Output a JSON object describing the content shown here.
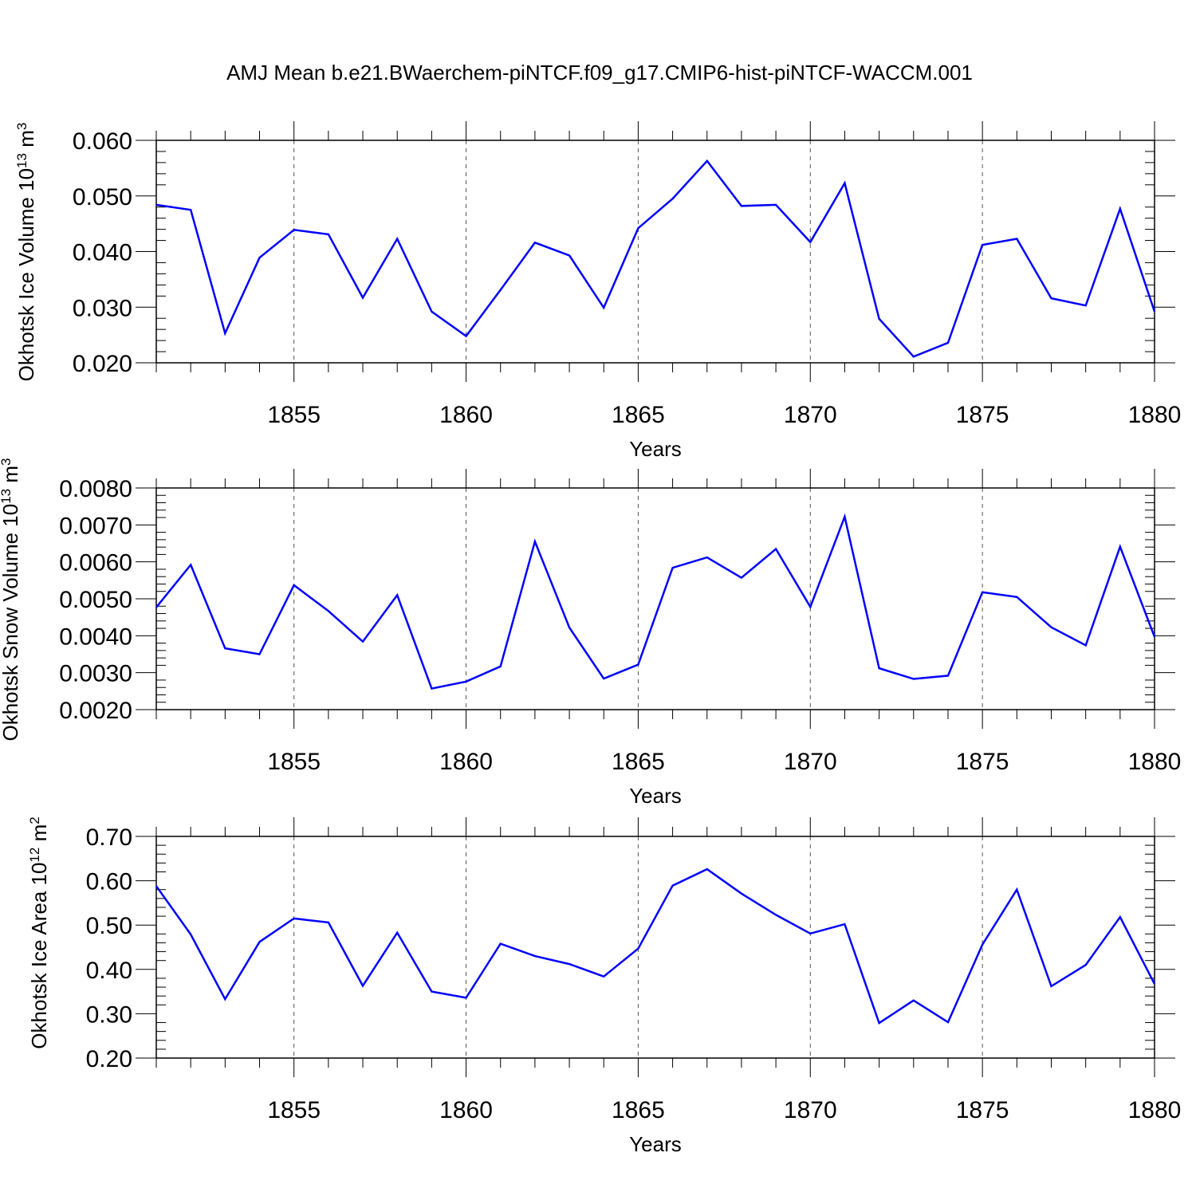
{
  "title": "AMJ Mean b.e21.BWaerchem-piNTCF.f09_g17.CMIP6-hist-piNTCF-WACCM.001",
  "line_color": "#0000ff",
  "chart_data": [
    {
      "type": "line",
      "xlabel": "Years",
      "ylabel": {
        "text": "Okhotsk Ice Volume 10",
        "exponent": "13",
        "unit": " m",
        "unit_exponent": "3"
      },
      "xlim": [
        1851,
        1880
      ],
      "ylim": [
        0.02,
        0.06
      ],
      "x_ticks": [
        1855,
        1860,
        1865,
        1870,
        1875,
        1880
      ],
      "x_tick_labels": [
        "1855",
        "1860",
        "1865",
        "1870",
        "1875",
        "1880"
      ],
      "y_ticks": [
        0.02,
        0.03,
        0.04,
        0.05,
        0.06
      ],
      "y_tick_labels": [
        "0.020",
        "0.030",
        "0.040",
        "0.050",
        "0.060"
      ],
      "grid": "vertical dashed at major x ticks",
      "x": [
        1851,
        1852,
        1853,
        1854,
        1855,
        1856,
        1857,
        1858,
        1859,
        1860,
        1861,
        1862,
        1863,
        1864,
        1865,
        1866,
        1867,
        1868,
        1869,
        1870,
        1871,
        1872,
        1873,
        1874,
        1875,
        1876,
        1877,
        1878,
        1879,
        1880
      ],
      "values": [
        0.0484,
        0.0475,
        0.0253,
        0.0389,
        0.0439,
        0.0431,
        0.0317,
        0.0423,
        0.0292,
        0.0248,
        0.0331,
        0.0416,
        0.0393,
        0.0299,
        0.0442,
        0.0495,
        0.0563,
        0.0482,
        0.0484,
        0.0417,
        0.0523,
        0.0279,
        0.0211,
        0.0236,
        0.0412,
        0.0423,
        0.0316,
        0.0303,
        0.0477,
        0.0292
      ]
    },
    {
      "type": "line",
      "xlabel": "Years",
      "ylabel": {
        "text": "Okhotsk Snow Volume 10",
        "exponent": "13",
        "unit": " m",
        "unit_exponent": "3"
      },
      "xlim": [
        1851,
        1880
      ],
      "ylim": [
        0.002,
        0.008
      ],
      "x_ticks": [
        1855,
        1860,
        1865,
        1870,
        1875,
        1880
      ],
      "x_tick_labels": [
        "1855",
        "1860",
        "1865",
        "1870",
        "1875",
        "1880"
      ],
      "y_ticks": [
        0.002,
        0.003,
        0.004,
        0.005,
        0.006,
        0.007,
        0.008
      ],
      "y_tick_labels": [
        "0.0020",
        "0.0030",
        "0.0040",
        "0.0050",
        "0.0060",
        "0.0070",
        "0.0080"
      ],
      "grid": "vertical dashed at major x ticks",
      "x": [
        1851,
        1852,
        1853,
        1854,
        1855,
        1856,
        1857,
        1858,
        1859,
        1860,
        1861,
        1862,
        1863,
        1864,
        1865,
        1866,
        1867,
        1868,
        1869,
        1870,
        1871,
        1872,
        1873,
        1874,
        1875,
        1876,
        1877,
        1878,
        1879,
        1880
      ],
      "values": [
        0.00477,
        0.00592,
        0.00366,
        0.0035,
        0.00537,
        0.00467,
        0.00384,
        0.0051,
        0.00257,
        0.00276,
        0.00317,
        0.00655,
        0.00422,
        0.00284,
        0.00322,
        0.00584,
        0.00612,
        0.00557,
        0.00635,
        0.00478,
        0.00722,
        0.00312,
        0.00283,
        0.00292,
        0.00518,
        0.00505,
        0.00423,
        0.00374,
        0.00641,
        0.00397
      ]
    },
    {
      "type": "line",
      "xlabel": "Years",
      "ylabel": {
        "text": "Okhotsk Ice Area 10",
        "exponent": "12",
        "unit": " m",
        "unit_exponent": "2"
      },
      "xlim": [
        1851,
        1880
      ],
      "ylim": [
        0.2,
        0.7
      ],
      "x_ticks": [
        1855,
        1860,
        1865,
        1870,
        1875,
        1880
      ],
      "x_tick_labels": [
        "1855",
        "1860",
        "1865",
        "1870",
        "1875",
        "1880"
      ],
      "y_ticks": [
        0.2,
        0.3,
        0.4,
        0.5,
        0.6,
        0.7
      ],
      "y_tick_labels": [
        "0.20",
        "0.30",
        "0.40",
        "0.50",
        "0.60",
        "0.70"
      ],
      "grid": "vertical dashed at major x ticks",
      "x": [
        1851,
        1852,
        1853,
        1854,
        1855,
        1856,
        1857,
        1858,
        1859,
        1860,
        1861,
        1862,
        1863,
        1864,
        1865,
        1866,
        1867,
        1868,
        1869,
        1870,
        1871,
        1872,
        1873,
        1874,
        1875,
        1876,
        1877,
        1878,
        1879,
        1880
      ],
      "values": [
        0.588,
        0.479,
        0.333,
        0.462,
        0.515,
        0.506,
        0.363,
        0.483,
        0.35,
        0.336,
        0.458,
        0.43,
        0.412,
        0.384,
        0.447,
        0.589,
        0.626,
        0.571,
        0.523,
        0.481,
        0.502,
        0.279,
        0.33,
        0.281,
        0.456,
        0.58,
        0.362,
        0.41,
        0.518,
        0.367
      ]
    }
  ]
}
